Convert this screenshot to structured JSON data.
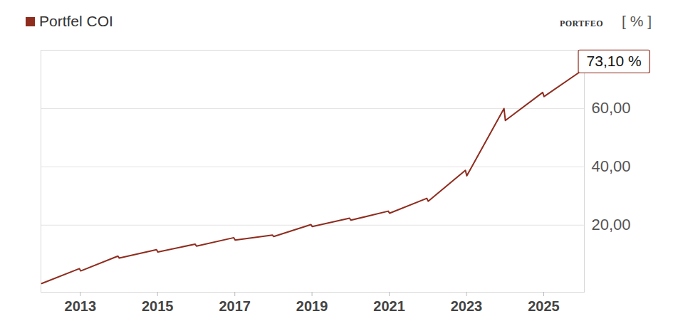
{
  "chart_data": {
    "type": "line",
    "y_label": "[ % ]",
    "brand": "PORTFEO",
    "legend": "top-left",
    "grid": true,
    "end_label": "73,10 %",
    "x": [
      "2012-01-01",
      "2012-12-22",
      "2013-01-04",
      "2013-12-22",
      "2014-01-04",
      "2014-12-22",
      "2015-01-04",
      "2015-12-22",
      "2016-01-04",
      "2016-12-22",
      "2017-01-04",
      "2017-12-22",
      "2018-01-04",
      "2018-12-22",
      "2019-01-04",
      "2019-12-22",
      "2020-01-04",
      "2020-12-22",
      "2021-01-04",
      "2021-12-22",
      "2022-01-04",
      "2022-12-22",
      "2023-01-04",
      "2023-12-22",
      "2024-01-04",
      "2024-12-22",
      "2025-01-04",
      "2025-12-31"
    ],
    "series": [
      {
        "name": "Portfel COI",
        "color": "#8e2c1e",
        "values": [
          0,
          5.1,
          4.3,
          9.4,
          8.7,
          11.6,
          10.8,
          13.5,
          12.8,
          15.7,
          14.9,
          16.6,
          16.1,
          20.2,
          19.5,
          22.4,
          21.7,
          24.8,
          24.1,
          29.2,
          28.2,
          38.8,
          36.9,
          60.0,
          55.9,
          65.5,
          64.1,
          73.1
        ]
      }
    ],
    "xlim": [
      "2011-12-25",
      "2026-01-20"
    ],
    "xticks": [
      {
        "value": "2013-01-01",
        "label": "2013"
      },
      {
        "value": "2015-01-01",
        "label": "2015"
      },
      {
        "value": "2017-01-01",
        "label": "2017"
      },
      {
        "value": "2019-01-01",
        "label": "2019"
      },
      {
        "value": "2021-01-01",
        "label": "2021"
      },
      {
        "value": "2023-01-01",
        "label": "2023"
      },
      {
        "value": "2025-01-01",
        "label": "2025"
      }
    ],
    "ylim": [
      -3,
      80
    ],
    "yticks": [
      {
        "value": 20,
        "label": "20,00"
      },
      {
        "value": 40,
        "label": "40,00"
      },
      {
        "value": 60,
        "label": "60,00"
      }
    ]
  }
}
